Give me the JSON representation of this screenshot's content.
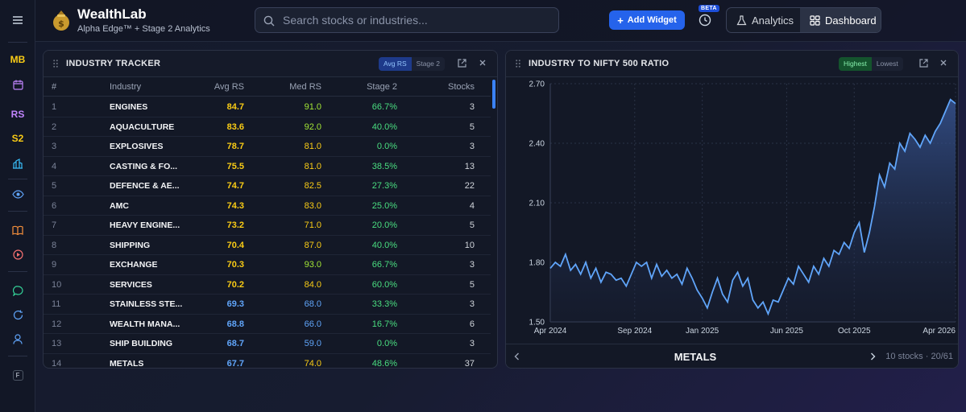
{
  "rail": {
    "mb": "MB",
    "rs": "RS",
    "s2": "S2",
    "f": "F",
    "colors": {
      "mb": "#facc15",
      "rs": "#c084fc",
      "s2": "#facc15"
    }
  },
  "header": {
    "brand_title": "WealthLab",
    "brand_subtitle": "Alpha Edge™ + Stage 2 Analytics",
    "search_placeholder": "Search stocks or industries...",
    "add_widget_label": "Add Widget",
    "beta_badge": "BETA",
    "analytics_label": "Analytics",
    "dashboard_label": "Dashboard"
  },
  "industry_tracker": {
    "title": "INDUSTRY TRACKER",
    "toggle": [
      "Avg RS",
      "Stage 2"
    ],
    "columns": [
      "#",
      "Industry",
      "Avg RS",
      "Med RS",
      "Stage 2",
      "Stocks"
    ],
    "rows": [
      {
        "num": "1",
        "industry": "ENGINES",
        "avg": "84.7",
        "med": "91.0",
        "stage2": "66.7%",
        "stocks": "3",
        "avg_color": "#facc15",
        "med_color": "#a3e635"
      },
      {
        "num": "2",
        "industry": "AQUACULTURE",
        "avg": "83.6",
        "med": "92.0",
        "stage2": "40.0%",
        "stocks": "5",
        "avg_color": "#facc15",
        "med_color": "#a3e635"
      },
      {
        "num": "3",
        "industry": "EXPLOSIVES",
        "avg": "78.7",
        "med": "81.0",
        "stage2": "0.0%",
        "stocks": "3",
        "avg_color": "#facc15",
        "med_color": "#facc15"
      },
      {
        "num": "4",
        "industry": "CASTING & FO...",
        "avg": "75.5",
        "med": "81.0",
        "stage2": "38.5%",
        "stocks": "13",
        "avg_color": "#facc15",
        "med_color": "#facc15"
      },
      {
        "num": "5",
        "industry": "DEFENCE & AE...",
        "avg": "74.7",
        "med": "82.5",
        "stage2": "27.3%",
        "stocks": "22",
        "avg_color": "#facc15",
        "med_color": "#facc15"
      },
      {
        "num": "6",
        "industry": "AMC",
        "avg": "74.3",
        "med": "83.0",
        "stage2": "25.0%",
        "stocks": "4",
        "avg_color": "#facc15",
        "med_color": "#facc15"
      },
      {
        "num": "7",
        "industry": "HEAVY ENGINE...",
        "avg": "73.2",
        "med": "71.0",
        "stage2": "20.0%",
        "stocks": "5",
        "avg_color": "#facc15",
        "med_color": "#facc15"
      },
      {
        "num": "8",
        "industry": "SHIPPING",
        "avg": "70.4",
        "med": "87.0",
        "stage2": "40.0%",
        "stocks": "10",
        "avg_color": "#facc15",
        "med_color": "#facc15"
      },
      {
        "num": "9",
        "industry": "EXCHANGE",
        "avg": "70.3",
        "med": "93.0",
        "stage2": "66.7%",
        "stocks": "3",
        "avg_color": "#facc15",
        "med_color": "#a3e635"
      },
      {
        "num": "10",
        "industry": "SERVICES",
        "avg": "70.2",
        "med": "84.0",
        "stage2": "60.0%",
        "stocks": "5",
        "avg_color": "#facc15",
        "med_color": "#facc15"
      },
      {
        "num": "11",
        "industry": "STAINLESS STE...",
        "avg": "69.3",
        "med": "68.0",
        "stage2": "33.3%",
        "stocks": "3",
        "avg_color": "#60a5fa",
        "med_color": "#60a5fa"
      },
      {
        "num": "12",
        "industry": "WEALTH MANA...",
        "avg": "68.8",
        "med": "66.0",
        "stage2": "16.7%",
        "stocks": "6",
        "avg_color": "#60a5fa",
        "med_color": "#60a5fa"
      },
      {
        "num": "13",
        "industry": "SHIP BUILDING",
        "avg": "68.7",
        "med": "59.0",
        "stage2": "0.0%",
        "stocks": "3",
        "avg_color": "#60a5fa",
        "med_color": "#60a5fa"
      },
      {
        "num": "14",
        "industry": "METALS",
        "avg": "67.7",
        "med": "74.0",
        "stage2": "48.6%",
        "stocks": "37",
        "avg_color": "#60a5fa",
        "med_color": "#facc15"
      }
    ]
  },
  "ratio_panel": {
    "title": "INDUSTRY TO NIFTY 500 RATIO",
    "toggle": [
      "Highest",
      "Lowest"
    ],
    "industry_name": "METALS",
    "footer_info": "10 stocks · 20/61"
  },
  "chart_data": {
    "type": "area",
    "title": "INDUSTRY TO NIFTY 500 RATIO",
    "xlabel": "",
    "ylabel": "",
    "ylim": [
      1.5,
      2.7
    ],
    "yticks": [
      "2.70",
      "2.40",
      "2.10",
      "1.80",
      "1.50"
    ],
    "ytick_values": [
      2.7,
      2.4,
      2.1,
      1.8,
      1.5
    ],
    "xticks": [
      "Apr 2024",
      "Sep 2024",
      "Jan 2025",
      "Jun 2025",
      "Oct 2025",
      "Apr 2026"
    ],
    "xtick_values": [
      0,
      5,
      9,
      14,
      18,
      24
    ],
    "xlim": [
      0,
      24
    ],
    "grid": true,
    "x": [
      0,
      0.3,
      0.6,
      0.9,
      1.2,
      1.5,
      1.8,
      2.1,
      2.4,
      2.7,
      3.0,
      3.3,
      3.6,
      3.9,
      4.2,
      4.5,
      4.8,
      5.1,
      5.4,
      5.7,
      6.0,
      6.3,
      6.6,
      6.9,
      7.2,
      7.5,
      7.8,
      8.1,
      8.4,
      8.7,
      9.0,
      9.3,
      9.6,
      9.9,
      10.2,
      10.5,
      10.8,
      11.1,
      11.4,
      11.7,
      12.0,
      12.3,
      12.6,
      12.9,
      13.2,
      13.5,
      13.8,
      14.1,
      14.4,
      14.7,
      15.0,
      15.3,
      15.6,
      15.9,
      16.2,
      16.5,
      16.8,
      17.1,
      17.4,
      17.7,
      18.0,
      18.3,
      18.6,
      18.9,
      19.2,
      19.5,
      19.8,
      20.1,
      20.4,
      20.7,
      21.0,
      21.3,
      21.6,
      21.9,
      22.2,
      22.5,
      22.8,
      23.1,
      23.4,
      23.7,
      24.0
    ],
    "values": [
      1.77,
      1.8,
      1.78,
      1.84,
      1.76,
      1.79,
      1.74,
      1.8,
      1.72,
      1.77,
      1.7,
      1.75,
      1.74,
      1.71,
      1.72,
      1.68,
      1.74,
      1.8,
      1.78,
      1.8,
      1.72,
      1.79,
      1.73,
      1.76,
      1.72,
      1.74,
      1.69,
      1.77,
      1.72,
      1.66,
      1.62,
      1.57,
      1.65,
      1.72,
      1.64,
      1.6,
      1.71,
      1.75,
      1.68,
      1.72,
      1.61,
      1.57,
      1.6,
      1.54,
      1.61,
      1.6,
      1.66,
      1.72,
      1.69,
      1.78,
      1.74,
      1.7,
      1.78,
      1.74,
      1.82,
      1.78,
      1.86,
      1.84,
      1.9,
      1.87,
      1.95,
      2.0,
      1.85,
      1.95,
      2.08,
      2.24,
      2.18,
      2.3,
      2.27,
      2.4,
      2.36,
      2.45,
      2.42,
      2.38,
      2.44,
      2.4,
      2.46,
      2.5,
      2.56,
      2.62,
      2.6
    ],
    "series": [
      {
        "name": "METALS",
        "color": "#60a5fa"
      }
    ]
  }
}
